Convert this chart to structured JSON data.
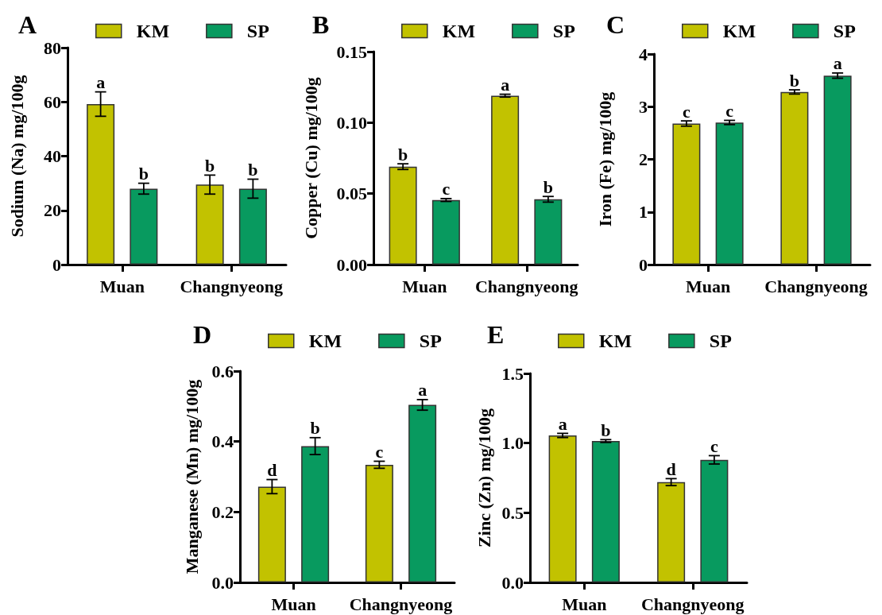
{
  "chart_data": [
    {
      "type": "bar",
      "title": "A",
      "ylabel": "Sodium (Na) mg/100g",
      "categories": [
        "Muan",
        "Changnyeong"
      ],
      "legend": "top",
      "ylim": [
        0,
        80
      ],
      "yticks": [
        0,
        20,
        40,
        60,
        80
      ],
      "series": [
        {
          "name": "KM",
          "color": "#c2c200",
          "values": [
            59.2,
            29.5
          ],
          "errors": [
            4.5,
            3.5
          ]
        },
        {
          "name": "SP",
          "color": "#089a5f",
          "values": [
            28,
            28
          ],
          "errors": [
            2,
            3.5
          ]
        }
      ],
      "annotations": [
        "a",
        "b",
        "b",
        "b"
      ]
    },
    {
      "type": "bar",
      "title": "B",
      "ylabel": "Copper (Cu) mg/100g",
      "categories": [
        "Muan",
        "Changnyeong"
      ],
      "legend": "top",
      "ylim": [
        0,
        0.15
      ],
      "yticks": [
        {
          "value": 0,
          "label": "0.00"
        },
        {
          "value": 0.05,
          "label": "0.05"
        },
        {
          "value": 0.1,
          "label": "0.10"
        },
        {
          "value": 0.15,
          "label": "0.15"
        }
      ],
      "series": [
        {
          "name": "KM",
          "color": "#c2c200",
          "values": [
            0.069,
            0.119
          ],
          "errors": [
            0.002,
            0.001
          ]
        },
        {
          "name": "SP",
          "color": "#089a5f",
          "values": [
            0.0455,
            0.046
          ],
          "errors": [
            0.001,
            0.002
          ]
        }
      ],
      "annotations": [
        "b",
        "c",
        "a",
        "b"
      ]
    },
    {
      "type": "bar",
      "title": "C",
      "ylabel": "Iron (Fe) mg/100g",
      "categories": [
        "Muan",
        "Changnyeong"
      ],
      "legend": "top",
      "ylim": [
        0,
        4
      ],
      "yticks": [
        0,
        1,
        2,
        3,
        4
      ],
      "series": [
        {
          "name": "KM",
          "color": "#c2c200",
          "values": [
            2.68,
            3.28
          ],
          "errors": [
            0.05,
            0.04
          ]
        },
        {
          "name": "SP",
          "color": "#089a5f",
          "values": [
            2.7,
            3.59
          ],
          "errors": [
            0.04,
            0.05
          ]
        }
      ],
      "annotations": [
        "c",
        "c",
        "b",
        "a"
      ]
    },
    {
      "type": "bar",
      "title": "D",
      "ylabel": "Manganese (Mn) mg/100g",
      "categories": [
        "Muan",
        "Changnyeong"
      ],
      "legend": "top",
      "ylim": [
        0,
        0.6
      ],
      "yticks": [
        {
          "value": 0,
          "label": "0.0"
        },
        {
          "value": 0.2,
          "label": "0.2"
        },
        {
          "value": 0.4,
          "label": "0.4"
        },
        {
          "value": 0.6,
          "label": "0.6"
        }
      ],
      "series": [
        {
          "name": "KM",
          "color": "#c2c200",
          "values": [
            0.272,
            0.334
          ],
          "errors": [
            0.02,
            0.01
          ]
        },
        {
          "name": "SP",
          "color": "#089a5f",
          "values": [
            0.387,
            0.504
          ],
          "errors": [
            0.024,
            0.015
          ]
        }
      ],
      "annotations": [
        "d",
        "b",
        "c",
        "a"
      ]
    },
    {
      "type": "bar",
      "title": "E",
      "ylabel": "Zinc (Zn) mg/100g",
      "categories": [
        "Muan",
        "Changnyeong"
      ],
      "legend": "top",
      "ylim": [
        0,
        1.5
      ],
      "yticks": [
        {
          "value": 0,
          "label": "0.0"
        },
        {
          "value": 0.5,
          "label": "0.5"
        },
        {
          "value": 1,
          "label": "1.0"
        },
        {
          "value": 1.5,
          "label": "1.5"
        }
      ],
      "series": [
        {
          "name": "KM",
          "color": "#c2c200",
          "values": [
            1.055,
            0.72
          ],
          "errors": [
            0.015,
            0.025
          ]
        },
        {
          "name": "SP",
          "color": "#089a5f",
          "values": [
            1.015,
            0.88
          ],
          "errors": [
            0.01,
            0.03
          ]
        }
      ],
      "annotations": [
        "a",
        "b",
        "d",
        "c"
      ]
    }
  ]
}
